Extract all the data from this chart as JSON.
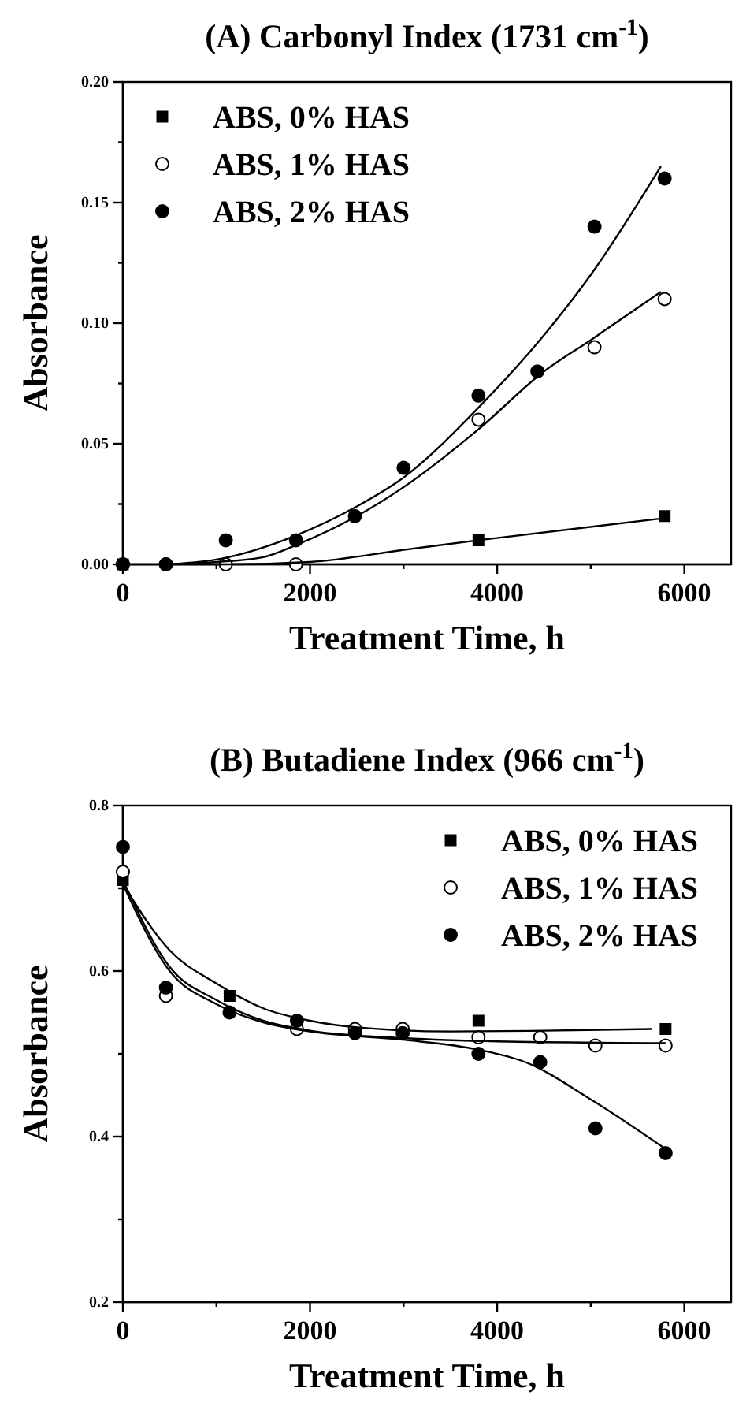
{
  "chart_data": [
    {
      "type": "scatter",
      "title": "(A) Carbonyl Index (1731 cm$^{-1}$)",
      "xlabel": "Treatment Time, h",
      "ylabel": "Absorbance",
      "xlim": [
        0,
        6500
      ],
      "xticks": [
        0,
        {
          "value": 1000,
          "label": null
        },
        2000,
        {
          "value": 3000,
          "label": null
        },
        4000,
        {
          "value": 5000,
          "label": null
        },
        6000
      ],
      "ylim": [
        0,
        0.2
      ],
      "yticks": [
        {
          "value": 0,
          "label": "0.00"
        },
        {
          "value": 0.025,
          "label": null
        },
        0.05,
        {
          "value": 0.075,
          "label": null
        },
        {
          "value": 0.1,
          "label": "0.10"
        },
        {
          "value": 0.125,
          "label": null
        },
        0.15,
        {
          "value": 0.175,
          "label": null
        },
        {
          "value": 0.2,
          "label": "0.20"
        }
      ],
      "legend": "top left",
      "grid": false,
      "series": [
        {
          "name": "ABS, 0% HAS",
          "marker": "square",
          "color": "#000000",
          "x": [
            0,
            3800,
            5790
          ],
          "values": [
            0,
            0.01,
            0.02
          ]
        },
        {
          "name": "ABS, 1% HAS",
          "marker": "circle",
          "color": "#ffffff",
          "x": [
            0,
            460,
            1100,
            1850,
            3800,
            5040,
            5790
          ],
          "values": [
            0,
            0,
            0,
            0,
            0.06,
            0.09,
            0.11
          ]
        },
        {
          "name": "ABS, 2% HAS",
          "marker": "circle",
          "color": "#000000",
          "x": [
            0,
            460,
            1100,
            1850,
            2480,
            3000,
            3800,
            4430,
            5040,
            5790
          ],
          "values": [
            0,
            0,
            0.01,
            0.01,
            0.02,
            0.04,
            0.07,
            0.08,
            0.14,
            0.16
          ]
        },
        {
          "type": "line",
          "marker": "none",
          "color": "#000000",
          "x": [
            0,
            1100,
            2000,
            3000,
            3800,
            5750
          ],
          "values": [
            0,
            0,
            0.001,
            0.006,
            0.01,
            0.019
          ]
        },
        {
          "type": "line",
          "marker": "none",
          "color": "#000000",
          "x": [
            500,
            1000,
            1500,
            1850,
            2500,
            3000,
            3800,
            4500,
            5000,
            5750
          ],
          "values": [
            0,
            0.001,
            0.003,
            0.008,
            0.02,
            0.032,
            0.056,
            0.08,
            0.093,
            0.113
          ]
        },
        {
          "type": "line",
          "marker": "none",
          "color": "#000000",
          "x": [
            500,
            1000,
            1850,
            2500,
            3000,
            3800,
            4500,
            5000,
            5750
          ],
          "values": [
            0,
            0.002,
            0.012,
            0.024,
            0.036,
            0.065,
            0.095,
            0.12,
            0.165
          ]
        }
      ]
    },
    {
      "type": "scatter",
      "title": "(B) Butadiene Index (966 cm$^{-1}$)",
      "xlabel": "Treatment Time, h",
      "ylabel": "Absorbance",
      "xlim": [
        0,
        6500
      ],
      "xticks": [
        0,
        {
          "value": 1000,
          "label": null
        },
        2000,
        {
          "value": 3000,
          "label": null
        },
        4000,
        {
          "value": 5000,
          "label": null
        },
        6000
      ],
      "ylim": [
        0.2,
        0.8
      ],
      "yticks": [
        0.2,
        {
          "value": 0.3,
          "label": null
        },
        0.4,
        {
          "value": 0.5,
          "label": null
        },
        0.6,
        {
          "value": 0.7,
          "label": null
        },
        0.8
      ],
      "legend": "top right",
      "grid": false,
      "series": [
        {
          "name": "ABS, 0% HAS",
          "marker": "square",
          "color": "#000000",
          "x": [
            0,
            1140,
            3800,
            5800
          ],
          "values": [
            0.71,
            0.57,
            0.54,
            0.53
          ]
        },
        {
          "name": "ABS, 1% HAS",
          "marker": "circle",
          "color": "#ffffff",
          "x": [
            0,
            460,
            1860,
            2480,
            2990,
            3800,
            4460,
            5050,
            5800
          ],
          "values": [
            0.72,
            0.57,
            0.53,
            0.53,
            0.53,
            0.52,
            0.52,
            0.51,
            0.51
          ]
        },
        {
          "name": "ABS, 2% HAS",
          "marker": "circle",
          "color": "#000000",
          "x": [
            0,
            460,
            1140,
            1860,
            2480,
            2990,
            3800,
            4460,
            5050,
            5800
          ],
          "values": [
            0.75,
            0.58,
            0.55,
            0.54,
            0.525,
            0.525,
            0.5,
            0.49,
            0.41,
            0.38
          ]
        },
        {
          "type": "line",
          "marker": "none",
          "color": "#000000",
          "x": [
            0,
            500,
            1000,
            1500,
            2000,
            2500,
            3500,
            4500,
            5650
          ],
          "values": [
            0.705,
            0.625,
            0.585,
            0.555,
            0.54,
            0.532,
            0.527,
            0.528,
            0.53
          ]
        },
        {
          "type": "line",
          "marker": "none",
          "color": "#000000",
          "x": [
            0,
            500,
            1000,
            1500,
            2000,
            3000,
            4000,
            5800
          ],
          "values": [
            0.71,
            0.605,
            0.565,
            0.54,
            0.528,
            0.519,
            0.515,
            0.513
          ]
        },
        {
          "type": "line",
          "marker": "none",
          "color": "#000000",
          "x": [
            0,
            500,
            1000,
            1500,
            2000,
            3000,
            3800,
            4300,
            5000,
            5800
          ],
          "values": [
            0.705,
            0.6,
            0.56,
            0.538,
            0.527,
            0.517,
            0.505,
            0.49,
            0.445,
            0.385
          ]
        }
      ]
    }
  ]
}
